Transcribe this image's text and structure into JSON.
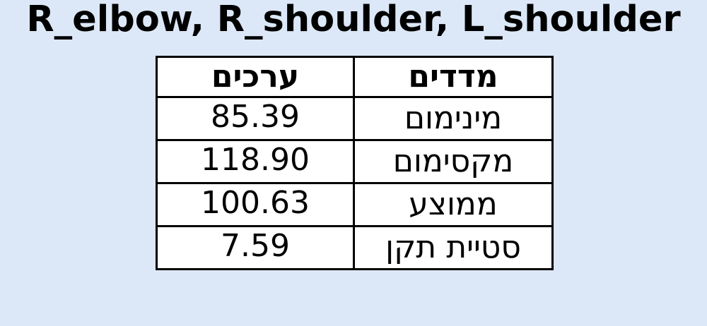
{
  "chart_data": {
    "type": "table",
    "title": "R_elbow, R_shoulder, L_shoulder",
    "columns": [
      "ערכים",
      "מדדים"
    ],
    "rows": [
      {
        "value": "85.39",
        "measure": "מינימום"
      },
      {
        "value": "118.90",
        "measure": "מקסימום"
      },
      {
        "value": "100.63",
        "measure": "ממוצע"
      },
      {
        "value": "7.59",
        "measure": "סטיית תקן"
      }
    ]
  },
  "colors": {
    "background": "#dce8f7",
    "table_background": "#ffffff",
    "border": "#000000"
  }
}
